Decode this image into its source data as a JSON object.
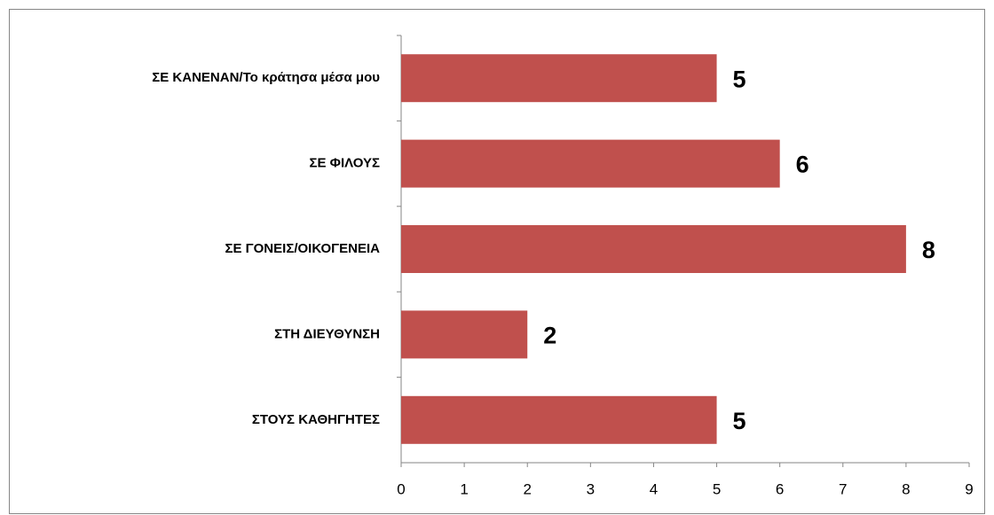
{
  "chart_data": {
    "type": "bar",
    "orientation": "horizontal",
    "categories": [
      "ΣΕ ΚΑΝΕΝΑΝ/Το κράτησα μέσα μου",
      "ΣΕ ΦΙΛΟΥΣ",
      "ΣΕ ΓΟΝΕΙΣ/ΟΙΚΟΓΕΝΕΙΑ",
      "ΣΤΗ ΔΙΕΥΘΥΝΣΗ",
      "ΣΤΟΥΣ ΚΑΘΗΓΗΤΕΣ"
    ],
    "values": [
      5,
      6,
      8,
      2,
      5
    ],
    "color": "#c0504d",
    "xlim": [
      0,
      9
    ],
    "xticks": [
      0,
      1,
      2,
      3,
      4,
      5,
      6,
      7,
      8,
      9
    ],
    "grid": false
  }
}
